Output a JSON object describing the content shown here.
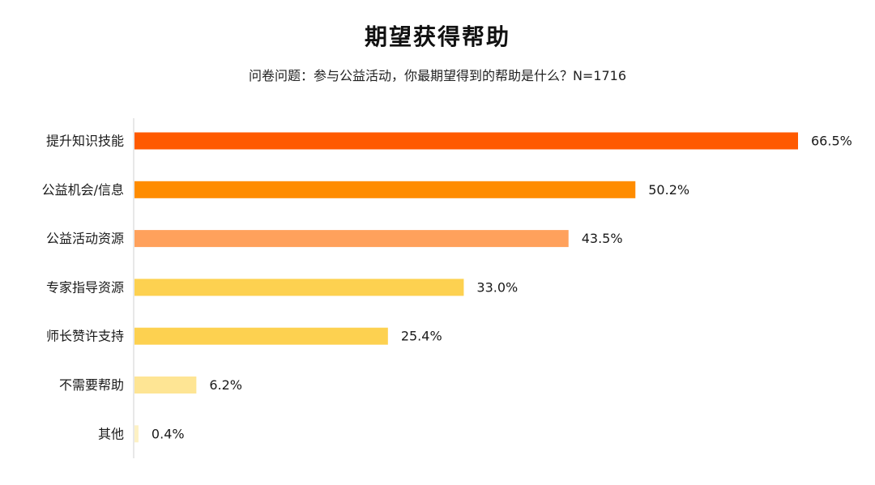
{
  "chart_data": {
    "type": "bar",
    "orientation": "horizontal",
    "title": "期望获得帮助",
    "subtitle": "问卷问题：参与公益活动，你最期望得到的帮助是什么？N=1716",
    "categories": [
      "提升知识技能",
      "公益机会/信息",
      "公益活动资源",
      "专家指导资源",
      "师长赞许支持",
      "不需要帮助",
      "其他"
    ],
    "values": [
      66.5,
      50.2,
      43.5,
      33.0,
      25.4,
      6.2,
      0.4
    ],
    "value_labels": [
      "66.5%",
      "50.2%",
      "43.5%",
      "33.0%",
      "25.4%",
      "6.2%",
      "0.4%"
    ],
    "bar_colors": [
      "#ff5a00",
      "#ff8c00",
      "#ffa15c",
      "#fdd150",
      "#fdd150",
      "#fee594",
      "#fdf1c4"
    ],
    "xlim": [
      0,
      66.5
    ],
    "grid": false,
    "legend": "none"
  }
}
